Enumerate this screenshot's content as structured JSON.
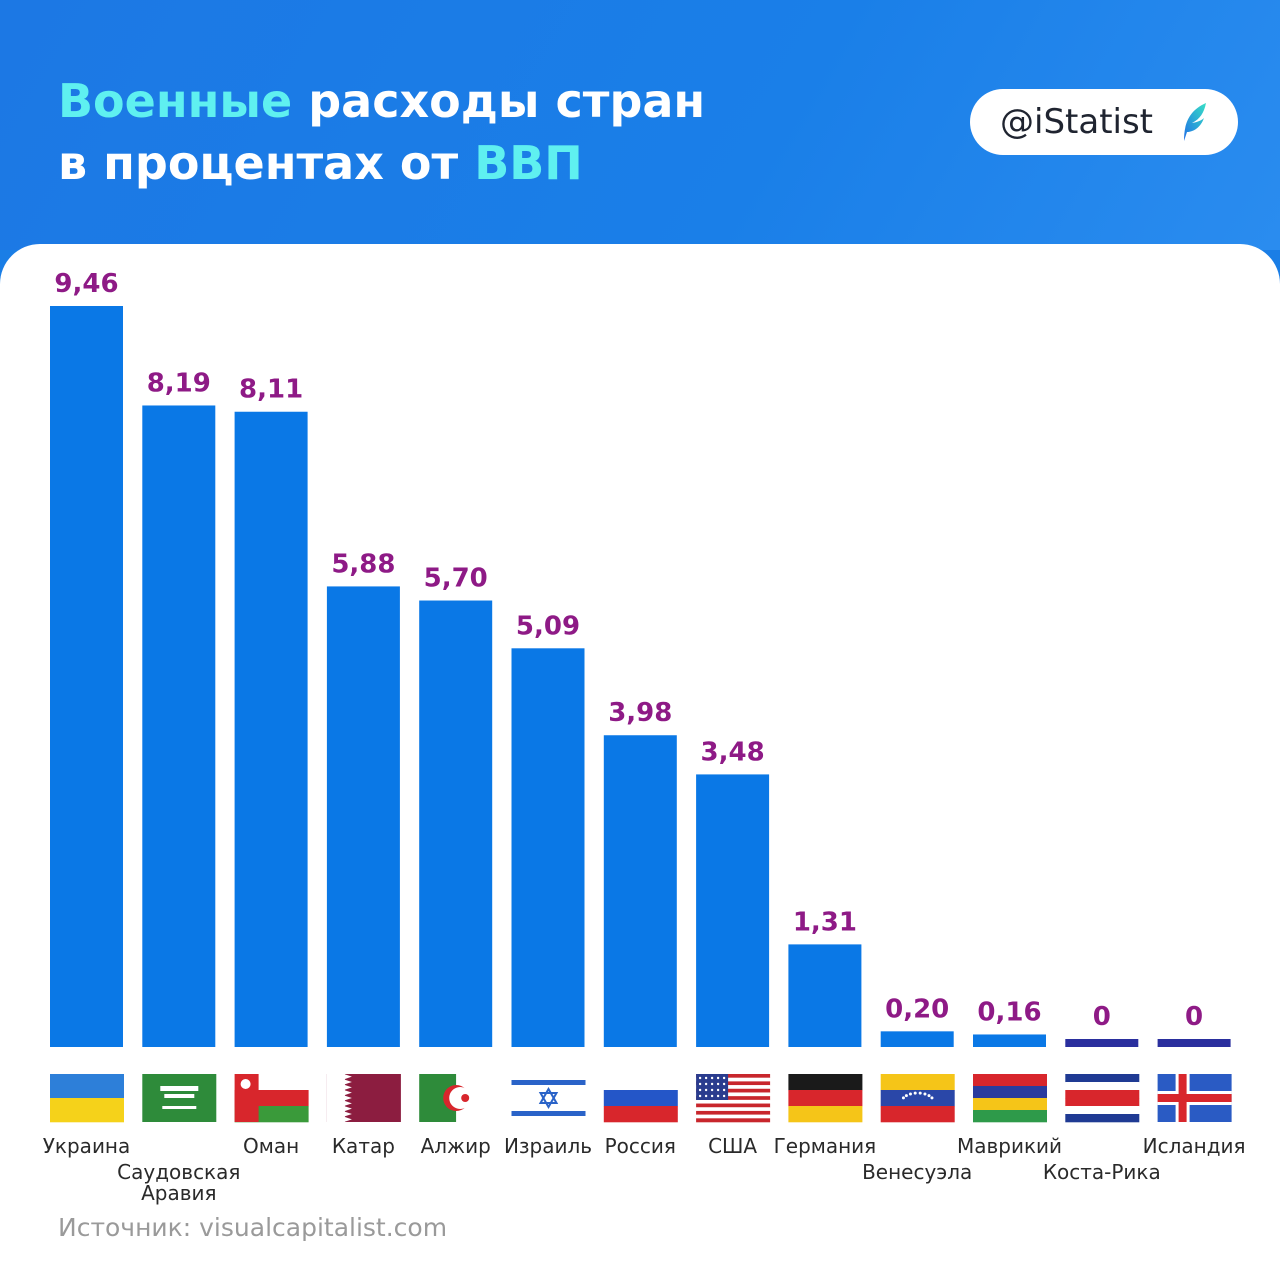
{
  "header": {
    "title_hl1": "Военные",
    "title_mid": " расходы стран",
    "title_line2": "в процентах от ",
    "title_hl2": "ВВП",
    "badge": "@iStatist"
  },
  "colors": {
    "bar": "#0a78e6",
    "bar_zero": "#2a2f9e",
    "value": "#8e1a86",
    "accent": "#5ff0f0"
  },
  "chart_data": {
    "type": "bar",
    "title": "Военные расходы стран в процентах от ВВП",
    "categories": [
      "Украина",
      "Саудовская Аравия",
      "Оман",
      "Катар",
      "Алжир",
      "Израиль",
      "Россия",
      "США",
      "Германия",
      "Венесуэла",
      "Маврикий",
      "Коста-Рика",
      "Исландия"
    ],
    "value_labels": [
      "9,46",
      "8,19",
      "8,11",
      "5,88",
      "5,70",
      "5,09",
      "3,98",
      "3,48",
      "1,31",
      "0,20",
      "0,16",
      "0",
      "0"
    ],
    "values": [
      9.46,
      8.19,
      8.11,
      5.88,
      5.7,
      5.09,
      3.98,
      3.48,
      1.31,
      0.2,
      0.16,
      0,
      0
    ],
    "flags": [
      "ukraine-flag",
      "saudi-arabia-flag",
      "oman-flag",
      "qatar-flag",
      "algeria-flag",
      "israel-flag",
      "russia-flag",
      "usa-flag",
      "germany-flag",
      "venezuela-flag",
      "mauritius-flag",
      "costa-rica-flag",
      "iceland-flag"
    ],
    "ylim": [
      0,
      9.46
    ],
    "grid": false,
    "legend": "none"
  },
  "source": "Источник: visualcapitalist.com"
}
